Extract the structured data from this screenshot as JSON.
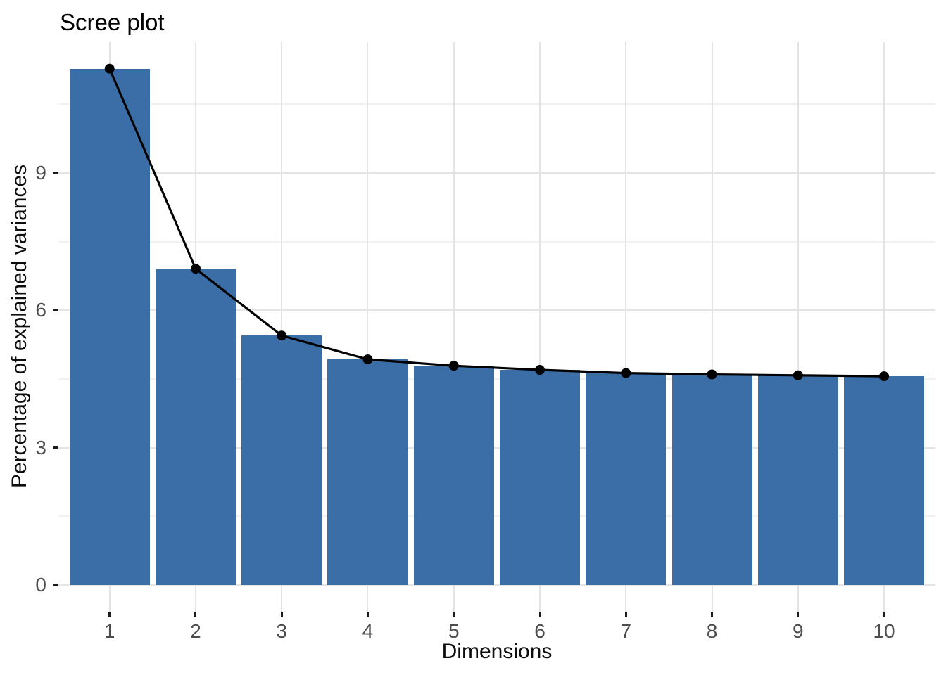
{
  "chart_data": {
    "type": "bar",
    "overlay": "line+points on bar values",
    "title": "Scree plot",
    "xlabel": "Dimensions",
    "ylabel": "Percentage of explained variances",
    "categories": [
      "1",
      "2",
      "3",
      "4",
      "5",
      "6",
      "7",
      "8",
      "9",
      "10"
    ],
    "series": [
      {
        "name": "bars",
        "type": "bar",
        "values": [
          11.28,
          6.91,
          5.45,
          4.93,
          4.79,
          4.7,
          4.63,
          4.6,
          4.58,
          4.56
        ]
      },
      {
        "name": "line",
        "type": "line",
        "values": [
          11.28,
          6.91,
          5.45,
          4.93,
          4.79,
          4.7,
          4.63,
          4.6,
          4.58,
          4.56
        ]
      }
    ],
    "ylim": [
      0,
      11.86
    ],
    "y_major_ticks": [
      0,
      3,
      6,
      9
    ],
    "y_minor_gridlines": [
      1.5,
      4.5,
      7.5,
      10.5
    ],
    "grid": {
      "horizontal_major": true,
      "horizontal_minor": true,
      "vertical_major_per_category": true,
      "vertical_minor": false
    },
    "legend_position": "none",
    "colors": {
      "bar_fill": "#3B6EA7",
      "line": "#000000",
      "point": "#000000",
      "grid_major": "#E4E4E4",
      "grid_minor": "#F1F1F1",
      "axis_tick": "#1A1A1A",
      "tick_label": "#4D4D4D",
      "title": "#000000",
      "axis_title": "#0D0D0D",
      "background": "#FFFFFF"
    }
  }
}
